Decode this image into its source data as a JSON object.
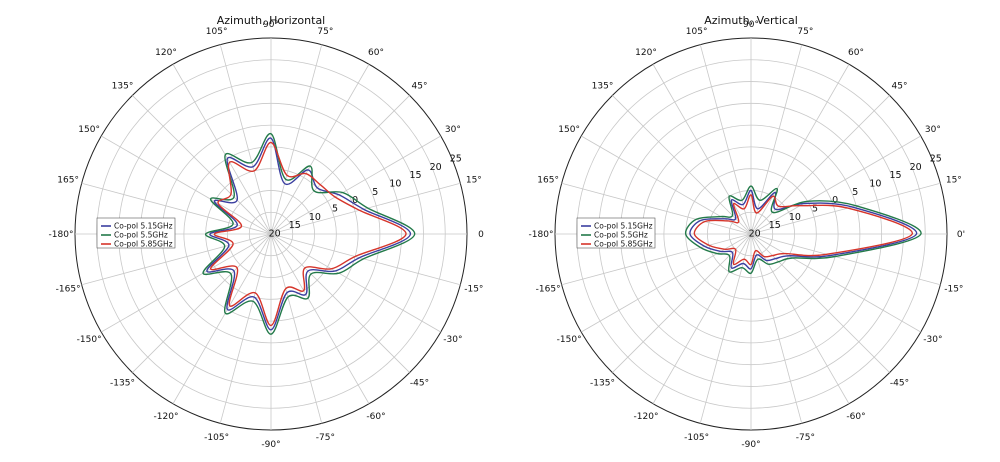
{
  "chart_data": [
    {
      "type": "polar-line",
      "title": "Azimuth, Horizontal",
      "radial_ticks": [
        "20",
        "15",
        "10",
        "5",
        "0",
        "5",
        "10",
        "15",
        "20",
        "25"
      ],
      "angle_labels": [
        "0",
        "15°",
        "30°",
        "45°",
        "60°",
        "75°",
        "90°",
        "105°",
        "120°",
        "135°",
        "150°",
        "165°",
        "-180°",
        "-165°",
        "-150°",
        "-135°",
        "-120°",
        "-105°",
        "-90°",
        "-75°",
        "-60°",
        "-45°",
        "-30°",
        "-15°"
      ],
      "grid": true,
      "legend_position": "left",
      "series": [
        {
          "name": "Co-pol 5.15GHz",
          "color": "#3b3fa0",
          "theta": [
            0,
            15,
            30,
            45,
            60,
            75,
            90,
            105,
            120,
            135,
            150,
            165,
            180,
            195,
            210,
            225,
            240,
            255,
            270,
            285,
            300,
            315,
            330,
            345
          ],
          "r": [
            12,
            2,
            -2,
            -5,
            -3,
            -8,
            2,
            -4,
            0,
            -9,
            -5,
            -12,
            -6,
            -10,
            -3,
            -8,
            0,
            -5,
            2,
            -6,
            -4,
            -8,
            -3,
            1
          ]
        },
        {
          "name": "Co-pol 5.5GHz",
          "color": "#237a4a",
          "theta": [
            0,
            15,
            30,
            45,
            60,
            75,
            90,
            105,
            120,
            135,
            150,
            165,
            180,
            195,
            210,
            225,
            240,
            255,
            270,
            285,
            300,
            315,
            330,
            345
          ],
          "r": [
            13,
            3,
            -1,
            -6,
            -2,
            -7,
            3,
            -3,
            1,
            -8,
            -4,
            -11,
            -5,
            -9,
            -2,
            -7,
            1,
            -4,
            3,
            -5,
            -3,
            -7,
            -2,
            2
          ]
        },
        {
          "name": "Co-pol 5.85GHz",
          "color": "#d6352b",
          "theta": [
            0,
            15,
            30,
            45,
            60,
            75,
            90,
            105,
            120,
            135,
            150,
            165,
            180,
            195,
            210,
            225,
            240,
            255,
            270,
            285,
            300,
            315,
            330,
            345
          ],
          "r": [
            11,
            1,
            -3,
            -4,
            -4,
            -6,
            1,
            -5,
            -1,
            -7,
            -6,
            -13,
            -7,
            -11,
            -4,
            -9,
            -1,
            -6,
            1,
            -7,
            -5,
            -9,
            -4,
            0
          ]
        }
      ]
    },
    {
      "type": "polar-line",
      "title": "Azimuth, Vertical",
      "radial_ticks": [
        "20",
        "15",
        "10",
        "5",
        "0",
        "5",
        "10",
        "15",
        "20",
        "25"
      ],
      "angle_labels": [
        "0'",
        "15°",
        "30°",
        "45°",
        "60°",
        "75°",
        "90°",
        "105°",
        "120°",
        "135°",
        "150°",
        "165°",
        "-180°",
        "-165°",
        "-150°",
        "-135°",
        "-120°",
        "-105°",
        "-90°",
        "-75°",
        "-60°",
        "-45°",
        "-30°",
        "-15°"
      ],
      "grid": true,
      "legend_position": "left",
      "series": [
        {
          "name": "Co-pol 5.15GHz",
          "color": "#3b3fa0",
          "theta": [
            0,
            15,
            30,
            45,
            60,
            75,
            90,
            105,
            120,
            135,
            150,
            165,
            180,
            195,
            210,
            225,
            240,
            255,
            270,
            285,
            300,
            315,
            330,
            345
          ],
          "r": [
            18,
            4,
            -6,
            -12,
            -9,
            -14,
            -10,
            -13,
            -11,
            -15,
            -13,
            -8,
            -6,
            -9,
            -12,
            -14,
            -11,
            -13,
            -12,
            -15,
            -13,
            -12,
            -10,
            -1
          ]
        },
        {
          "name": "Co-pol 5.5GHz",
          "color": "#237a4a",
          "theta": [
            0,
            15,
            30,
            45,
            60,
            75,
            90,
            105,
            120,
            135,
            150,
            165,
            180,
            195,
            210,
            225,
            240,
            255,
            270,
            285,
            300,
            315,
            330,
            345
          ],
          "r": [
            19,
            5,
            -5,
            -13,
            -8,
            -12,
            -9,
            -12,
            -10,
            -14,
            -12,
            -7,
            -5,
            -8,
            -11,
            -13,
            -10,
            -12,
            -11,
            -14,
            -12,
            -11,
            -9,
            0
          ]
        },
        {
          "name": "Co-pol 5.85GHz",
          "color": "#d6352b",
          "theta": [
            0,
            15,
            30,
            45,
            60,
            75,
            90,
            105,
            120,
            135,
            150,
            165,
            180,
            195,
            210,
            225,
            240,
            255,
            270,
            285,
            300,
            315,
            330,
            345
          ],
          "r": [
            17,
            3,
            -7,
            -11,
            -10,
            -15,
            -11,
            -14,
            -12,
            -16,
            -14,
            -9,
            -7,
            -10,
            -13,
            -15,
            -12,
            -14,
            -13,
            -16,
            -14,
            -13,
            -11,
            -2
          ]
        }
      ]
    }
  ]
}
